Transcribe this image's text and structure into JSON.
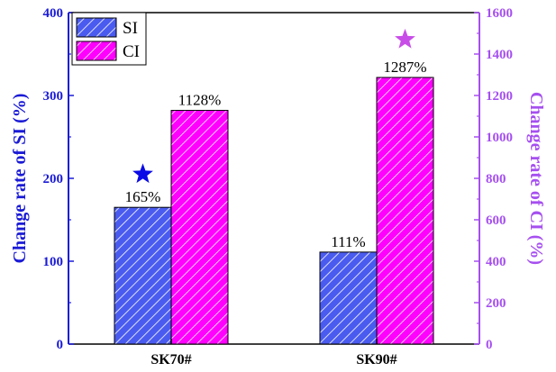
{
  "chart_data": {
    "type": "bar",
    "categories": [
      "SK70#",
      "SK90#"
    ],
    "series": [
      {
        "name": "SI",
        "axis": "left",
        "values": [
          165,
          111
        ],
        "labels": [
          "165%",
          "111%"
        ],
        "color": "#4a5bf0",
        "hatch": "#ffffff"
      },
      {
        "name": "CI",
        "axis": "right",
        "values": [
          1128,
          1287
        ],
        "labels": [
          "1128%",
          "1287%"
        ],
        "color": "#ff00ff",
        "hatch": "#ffffff"
      }
    ],
    "y_left": {
      "label": "Change rate of SI (%)",
      "ylim": [
        0,
        400
      ],
      "ticks": [
        0,
        100,
        200,
        300,
        400
      ],
      "color": "#1a1ad6"
    },
    "y_right": {
      "label": "Change rate of CI (%)",
      "ylim": [
        0,
        1600
      ],
      "ticks": [
        0,
        200,
        400,
        600,
        800,
        1000,
        1200,
        1400,
        1600
      ],
      "color": "#a64ff0"
    },
    "legend": {
      "placement": "top-left"
    },
    "annotations": [
      {
        "type": "star",
        "category": "SK70#",
        "series": "SI",
        "value": 205,
        "color": "#0a0ae6"
      },
      {
        "type": "star",
        "category": "SK90#",
        "series": "CI",
        "value": 1470,
        "color": "#c84de8"
      }
    ]
  }
}
